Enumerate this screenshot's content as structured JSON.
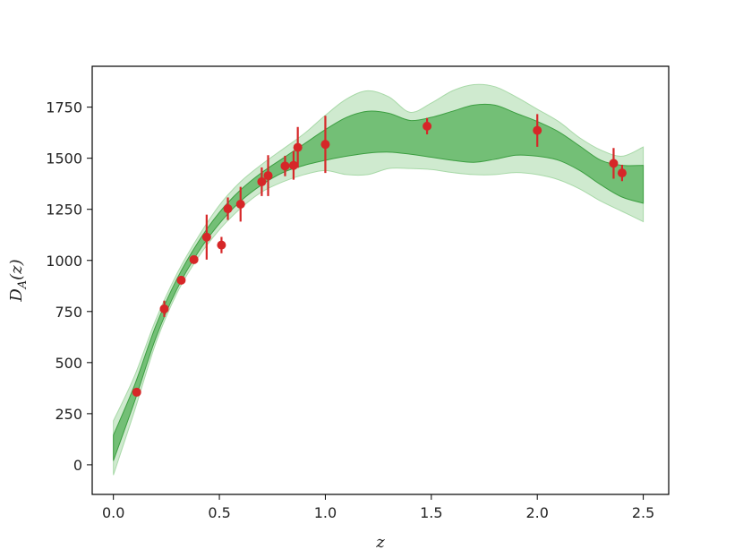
{
  "chart_data": {
    "type": "scatter",
    "xlabel": "z",
    "ylabel": "D_A(z)",
    "ylabel_main": "D",
    "ylabel_sub": "A",
    "ylabel_arg": "(z)",
    "xlim": [
      -0.1,
      2.62
    ],
    "ylim": [
      -145,
      1950
    ],
    "x_ticks": [
      0.0,
      0.5,
      1.0,
      1.5,
      2.0,
      2.5
    ],
    "x_tick_labels": [
      "0.0",
      "0.5",
      "1.0",
      "1.5",
      "2.0",
      "2.5"
    ],
    "y_ticks": [
      0,
      250,
      500,
      750,
      1000,
      1250,
      1500,
      1750
    ],
    "y_tick_labels": [
      "0",
      "250",
      "500",
      "750",
      "1000",
      "1250",
      "1500",
      "1750"
    ],
    "grid": false,
    "legend": "none",
    "colors": {
      "points": "#d62728",
      "band_1sigma": "#4cac50",
      "band_2sigma": "#a8d9a8",
      "band_edge": "#3c9e41"
    },
    "points": [
      {
        "x": 0.11,
        "y": 355,
        "err": 12
      },
      {
        "x": 0.24,
        "y": 763,
        "err": 40
      },
      {
        "x": 0.32,
        "y": 903,
        "err": 15
      },
      {
        "x": 0.38,
        "y": 1004,
        "err": 15
      },
      {
        "x": 0.44,
        "y": 1114,
        "err": 110
      },
      {
        "x": 0.51,
        "y": 1075,
        "err": 40
      },
      {
        "x": 0.54,
        "y": 1253,
        "err": 55
      },
      {
        "x": 0.6,
        "y": 1275,
        "err": 85
      },
      {
        "x": 0.7,
        "y": 1385,
        "err": 70
      },
      {
        "x": 0.73,
        "y": 1415,
        "err": 100
      },
      {
        "x": 0.81,
        "y": 1462,
        "err": 50
      },
      {
        "x": 0.85,
        "y": 1465,
        "err": 70
      },
      {
        "x": 0.87,
        "y": 1553,
        "err": 100
      },
      {
        "x": 1.0,
        "y": 1568,
        "err": 140
      },
      {
        "x": 1.48,
        "y": 1657,
        "err": 40
      },
      {
        "x": 2.0,
        "y": 1636,
        "err": 80
      },
      {
        "x": 2.36,
        "y": 1475,
        "err": 75
      },
      {
        "x": 2.4,
        "y": 1428,
        "err": 40
      }
    ],
    "band_1sigma": {
      "x": [
        0.0,
        0.1,
        0.2,
        0.3,
        0.4,
        0.5,
        0.6,
        0.7,
        0.8,
        0.9,
        1.0,
        1.1,
        1.2,
        1.3,
        1.4,
        1.5,
        1.6,
        1.7,
        1.8,
        1.9,
        2.0,
        2.1,
        2.2,
        2.3,
        2.4,
        2.5
      ],
      "lower": [
        20,
        310,
        620,
        860,
        1040,
        1180,
        1290,
        1370,
        1430,
        1465,
        1490,
        1510,
        1525,
        1530,
        1520,
        1505,
        1490,
        1480,
        1495,
        1515,
        1510,
        1490,
        1440,
        1370,
        1310,
        1280
      ],
      "upper": [
        145,
        390,
        680,
        910,
        1090,
        1235,
        1345,
        1430,
        1500,
        1570,
        1640,
        1700,
        1730,
        1720,
        1685,
        1700,
        1730,
        1760,
        1760,
        1720,
        1680,
        1630,
        1560,
        1490,
        1465,
        1465
      ]
    },
    "band_2sigma": {
      "x": [
        0.0,
        0.1,
        0.2,
        0.3,
        0.4,
        0.5,
        0.6,
        0.7,
        0.8,
        0.9,
        1.0,
        1.1,
        1.2,
        1.3,
        1.4,
        1.5,
        1.6,
        1.7,
        1.8,
        1.9,
        2.0,
        2.1,
        2.2,
        2.3,
        2.4,
        2.5
      ],
      "lower": [
        -50,
        265,
        595,
        840,
        1015,
        1150,
        1255,
        1335,
        1385,
        1420,
        1440,
        1420,
        1420,
        1450,
        1450,
        1445,
        1430,
        1420,
        1420,
        1430,
        1420,
        1395,
        1350,
        1290,
        1240,
        1190
      ],
      "upper": [
        215,
        435,
        710,
        935,
        1115,
        1270,
        1385,
        1470,
        1545,
        1620,
        1710,
        1790,
        1830,
        1800,
        1725,
        1770,
        1830,
        1860,
        1850,
        1800,
        1740,
        1680,
        1600,
        1540,
        1510,
        1555
      ]
    }
  }
}
